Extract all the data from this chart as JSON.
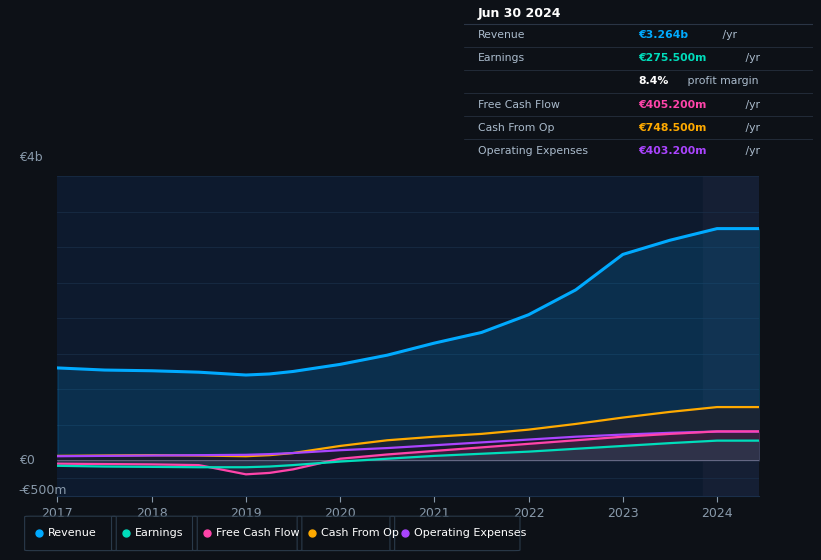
{
  "background_color": "#0d1117",
  "chart_bg": "#0d1a2e",
  "grid_color": "#1a2f4a",
  "text_color": "#8899aa",
  "title_color": "#ffffff",
  "years": [
    2017,
    2017.5,
    2018,
    2018.5,
    2019,
    2019.25,
    2019.5,
    2020,
    2020.5,
    2021,
    2021.5,
    2022,
    2022.5,
    2023,
    2023.5,
    2024,
    2024.45
  ],
  "revenue": [
    1300,
    1270,
    1260,
    1240,
    1200,
    1215,
    1250,
    1350,
    1480,
    1650,
    1800,
    2050,
    2400,
    2900,
    3100,
    3264,
    3264
  ],
  "earnings": [
    -80,
    -90,
    -95,
    -100,
    -100,
    -90,
    -70,
    -20,
    20,
    60,
    90,
    120,
    160,
    200,
    240,
    275,
    275
  ],
  "free_cash_flow": [
    -50,
    -55,
    -60,
    -70,
    -200,
    -180,
    -130,
    20,
    80,
    130,
    180,
    230,
    280,
    330,
    370,
    405,
    405
  ],
  "cash_from_op": [
    60,
    65,
    70,
    65,
    55,
    70,
    100,
    200,
    280,
    330,
    370,
    430,
    510,
    600,
    680,
    748,
    748
  ],
  "operating_expenses": [
    55,
    60,
    65,
    70,
    75,
    85,
    100,
    140,
    170,
    210,
    250,
    290,
    330,
    360,
    385,
    403,
    403
  ],
  "revenue_color": "#00aaff",
  "earnings_color": "#00ddbb",
  "free_cash_flow_color": "#ff44aa",
  "cash_from_op_color": "#ffaa00",
  "operating_expenses_color": "#aa44ff",
  "ylim_min": -500,
  "ylim_max": 4000,
  "ytick_labels": [
    "-€500m",
    "€0",
    "€4b"
  ],
  "ytick_values": [
    -500,
    0,
    4000
  ],
  "ytick_grid_values": [
    -500,
    -250,
    0,
    500,
    1000,
    1500,
    2000,
    2500,
    3000,
    3500,
    4000
  ],
  "xticks": [
    2017,
    2018,
    2019,
    2020,
    2021,
    2022,
    2023,
    2024
  ],
  "table_title": "Jun 30 2024",
  "table_rows": [
    {
      "label": "Revenue",
      "value": "€3.264b",
      "suffix": " /yr",
      "value_color": "#00aaff"
    },
    {
      "label": "Earnings",
      "value": "€275.500m",
      "suffix": " /yr",
      "value_color": "#00ddbb"
    },
    {
      "label": "",
      "value": "8.4%",
      "suffix": " profit margin",
      "value_color": "#ffffff"
    },
    {
      "label": "Free Cash Flow",
      "value": "€405.200m",
      "suffix": " /yr",
      "value_color": "#ff44aa"
    },
    {
      "label": "Cash From Op",
      "value": "€748.500m",
      "suffix": " /yr",
      "value_color": "#ffaa00"
    },
    {
      "label": "Operating Expenses",
      "value": "€403.200m",
      "suffix": " /yr",
      "value_color": "#aa44ff"
    }
  ],
  "legend_entries": [
    {
      "label": "Revenue",
      "color": "#00aaff"
    },
    {
      "label": "Earnings",
      "color": "#00ddbb"
    },
    {
      "label": "Free Cash Flow",
      "color": "#ff44aa"
    },
    {
      "label": "Cash From Op",
      "color": "#ffaa00"
    },
    {
      "label": "Operating Expenses",
      "color": "#aa44ff"
    }
  ]
}
